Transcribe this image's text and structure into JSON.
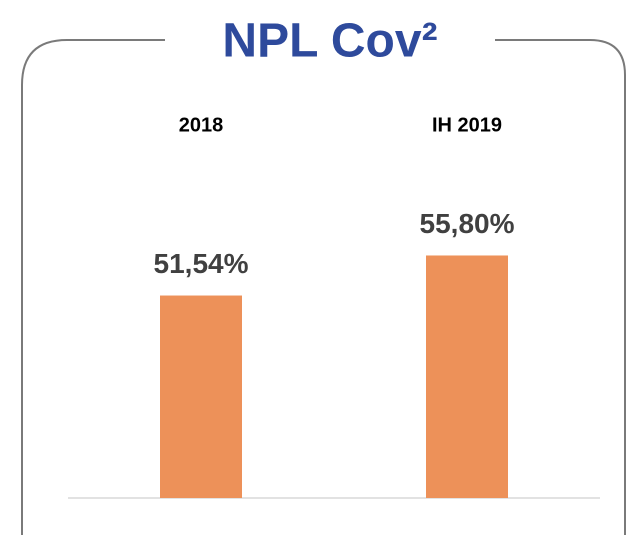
{
  "chart_data": {
    "type": "bar",
    "title": "NPL Cov²",
    "categories": [
      "2018",
      "IH 2019"
    ],
    "values": [
      51.54,
      55.8
    ],
    "value_labels": [
      "51,54%",
      "55,80%"
    ],
    "color": "#ed9159",
    "ylim": [
      30,
      60
    ]
  }
}
